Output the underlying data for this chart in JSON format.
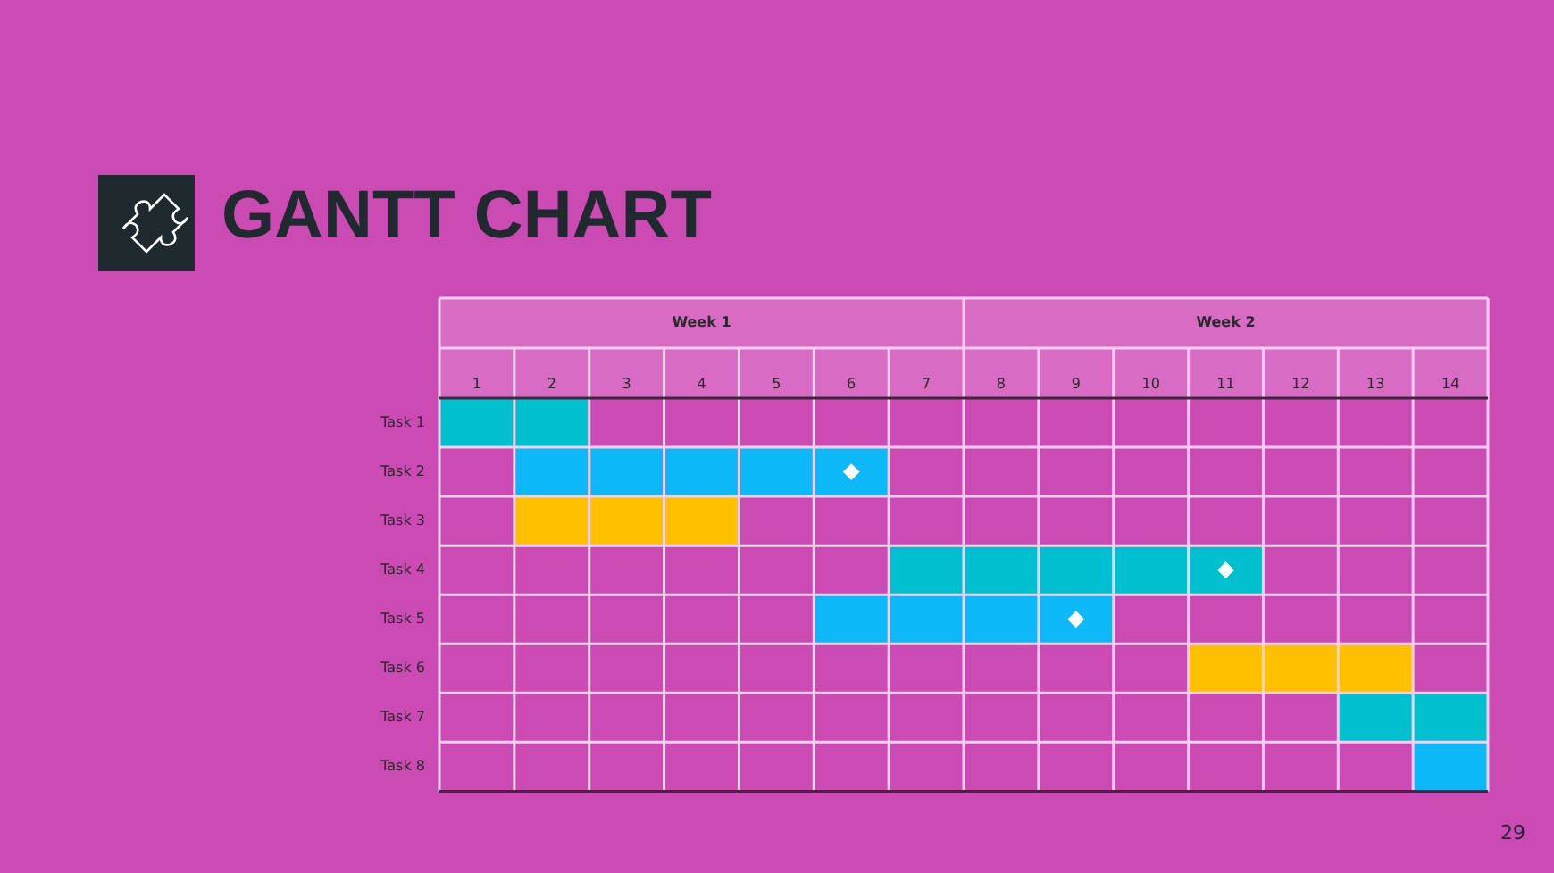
{
  "chart_data": {
    "type": "bar",
    "orientation": "horizontal",
    "title": "GANTT CHART",
    "categories": [
      "Task 1",
      "Task 2",
      "Task 3",
      "Task 4",
      "Task 5",
      "Task 6",
      "Task 7",
      "Task 8"
    ],
    "series": [
      {
        "base": [
          0,
          1,
          1,
          6,
          5,
          10,
          12,
          13
        ],
        "values": [
          2,
          5,
          3,
          5,
          4,
          3,
          2,
          1
        ],
        "colors": [
          "#00c0d0",
          "#0db8f8",
          "#ffc000",
          "#00c0d0",
          "#0db8f8",
          "#ffc000",
          "#00c0d0",
          "#0db8f8"
        ]
      },
      {
        "type": "scatter",
        "x": [
          "Task 2",
          "Task 4",
          "Task 5"
        ],
        "values": [
          5.5,
          10.5,
          8.5
        ],
        "color": "#ffffff",
        "marker": "diamond"
      }
    ],
    "xlim": [
      0,
      14
    ],
    "xticks": [
      {
        "value": 0.5,
        "label": "1"
      },
      {
        "value": 1.5,
        "label": "2"
      },
      {
        "value": 2.5,
        "label": "3"
      },
      {
        "value": 3.5,
        "label": "4"
      },
      {
        "value": 4.5,
        "label": "5"
      },
      {
        "value": 5.5,
        "label": "6"
      },
      {
        "value": 6.5,
        "label": "7"
      },
      {
        "value": 7.5,
        "label": "8"
      },
      {
        "value": 8.5,
        "label": "9"
      },
      {
        "value": 9.5,
        "label": "10"
      },
      {
        "value": 10.5,
        "label": "11"
      },
      {
        "value": 11.5,
        "label": "12"
      },
      {
        "value": 12.5,
        "label": "13"
      },
      {
        "value": 13.5,
        "label": "14"
      }
    ],
    "grid": true,
    "annotations": [
      "Week 1",
      "Week 2",
      "29"
    ]
  }
}
